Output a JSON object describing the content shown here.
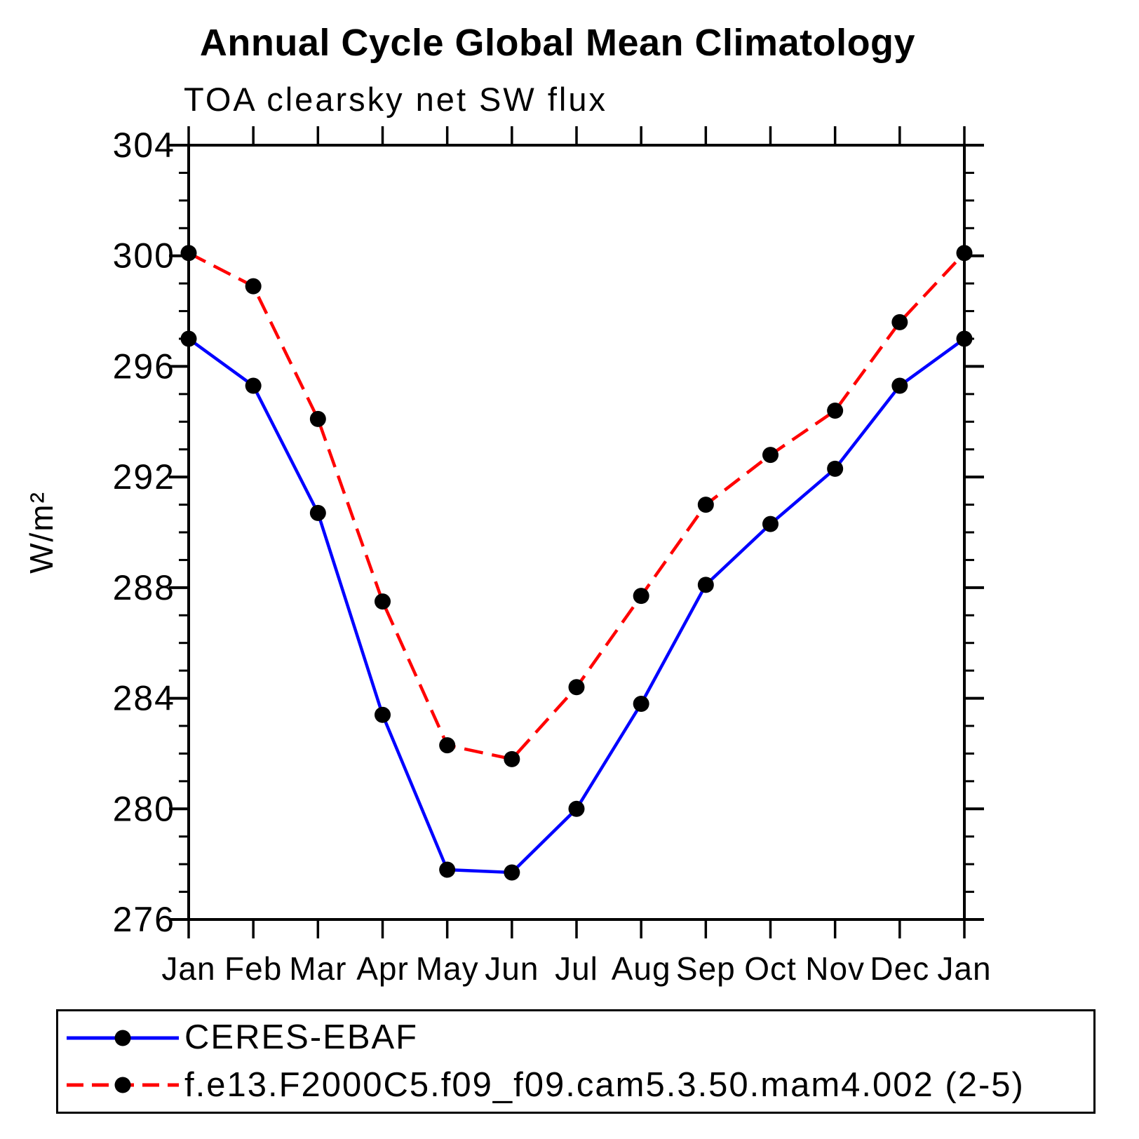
{
  "title": "Annual Cycle Global Mean Climatology",
  "chart_data": {
    "type": "line",
    "title": "Annual Cycle Global Mean Climatology",
    "subtitle": "TOA clearsky net SW flux",
    "ylabel": "W/m²",
    "xlabel": "",
    "x_categories": [
      "Jan",
      "Feb",
      "Mar",
      "Apr",
      "May",
      "Jun",
      "Jul",
      "Aug",
      "Sep",
      "Oct",
      "Nov",
      "Dec",
      "Jan"
    ],
    "ylim": [
      276,
      304
    ],
    "y_major_ticks": [
      276,
      280,
      284,
      288,
      292,
      296,
      300,
      304
    ],
    "y_minor_step": 1,
    "grid": false,
    "legend_position": "bottom",
    "axis_color": "#000000",
    "marker_color": "#000000",
    "series": [
      {
        "name": "CERES-EBAF",
        "color": "#0000ff",
        "style": "solid",
        "marker": "circle",
        "values": [
          297.0,
          295.3,
          290.7,
          283.4,
          277.8,
          277.7,
          280.0,
          283.8,
          288.1,
          290.3,
          292.3,
          295.3,
          297.0
        ]
      },
      {
        "name": "f.e13.F2000C5.f09_f09.cam5.3.50.mam4.002 (2-5)",
        "color": "#ff0000",
        "style": "dashed",
        "marker": "circle",
        "values": [
          300.1,
          298.9,
          294.1,
          287.5,
          282.3,
          281.8,
          284.4,
          287.7,
          291.0,
          292.8,
          294.4,
          297.6,
          300.1
        ]
      }
    ]
  }
}
